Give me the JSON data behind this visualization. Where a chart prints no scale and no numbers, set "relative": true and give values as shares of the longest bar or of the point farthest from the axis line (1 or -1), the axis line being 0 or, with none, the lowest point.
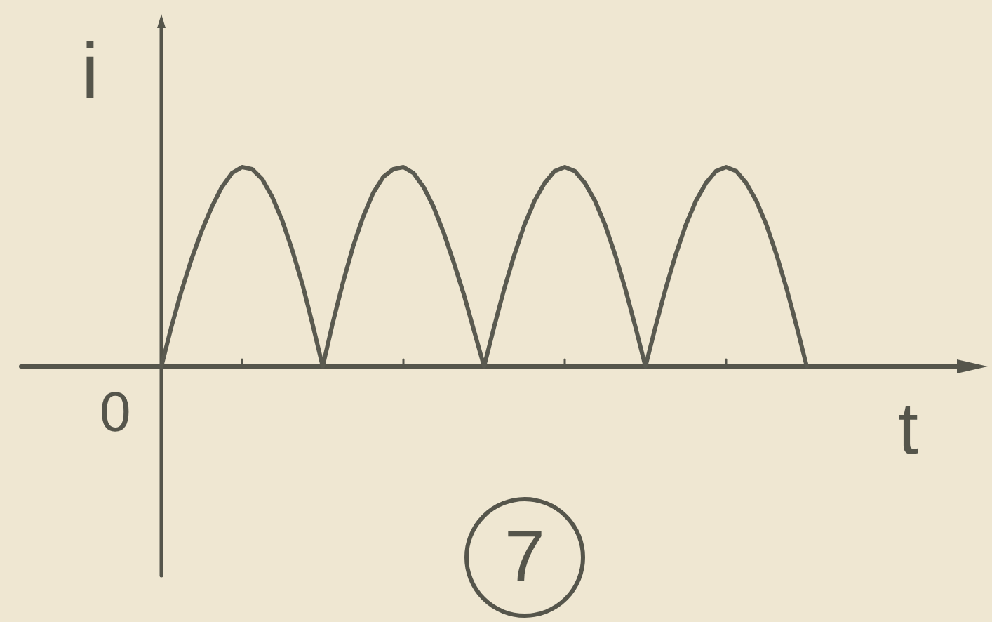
{
  "chart_data": {
    "type": "line",
    "xlabel": "t",
    "ylabel": "i",
    "annotations": [
      "0",
      "7"
    ],
    "relative": true,
    "color": "#5a5a50",
    "marker": "none",
    "line_style": "solid",
    "categories": [
      null,
      null,
      null,
      null,
      null,
      null,
      null,
      null,
      null,
      null,
      null,
      null,
      null,
      null,
      null,
      null,
      null,
      null,
      null,
      null,
      null,
      null,
      null,
      null,
      null,
      null,
      null,
      null,
      null,
      null,
      null,
      null,
      null,
      null,
      null,
      null,
      null,
      null,
      null,
      null,
      null,
      null,
      null,
      null,
      null,
      null,
      null,
      null,
      null,
      null,
      null,
      null,
      null,
      null,
      null,
      null,
      null,
      null,
      null,
      null,
      null,
      null,
      null,
      null,
      null
    ],
    "values": [
      0,
      0.2,
      0.38,
      0.54,
      0.68,
      0.8,
      0.9,
      0.97,
      1,
      0.99,
      0.94,
      0.85,
      0.73,
      0.58,
      0.41,
      0.21,
      0,
      0.22,
      0.42,
      0.6,
      0.75,
      0.87,
      0.95,
      0.99,
      1,
      0.97,
      0.9,
      0.8,
      0.67,
      0.52,
      0.36,
      0.18,
      0,
      0.2,
      0.39,
      0.56,
      0.71,
      0.83,
      0.92,
      0.98,
      1,
      0.98,
      0.92,
      0.83,
      0.71,
      0.56,
      0.39,
      0.2,
      0,
      0.2,
      0.39,
      0.56,
      0.71,
      0.83,
      0.92,
      0.98,
      1,
      0.98,
      0.92,
      0.83,
      0.71,
      0.56,
      0.39,
      0.2,
      0
    ]
  }
}
